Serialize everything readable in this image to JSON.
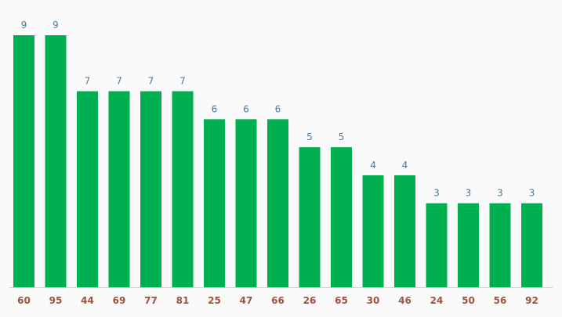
{
  "chart_data": {
    "type": "bar",
    "categories": [
      "60",
      "95",
      "44",
      "69",
      "77",
      "81",
      "25",
      "47",
      "66",
      "26",
      "65",
      "30",
      "46",
      "24",
      "50",
      "56",
      "92"
    ],
    "values": [
      9,
      9,
      7,
      7,
      7,
      7,
      6,
      6,
      6,
      5,
      5,
      4,
      4,
      3,
      3,
      3,
      3
    ],
    "title": "",
    "xlabel": "",
    "ylabel": "",
    "ylim": [
      0,
      9
    ],
    "grid": false,
    "legend": "none",
    "colors": {
      "bar": "#00b050",
      "value_label": "#4a7a9b",
      "category_label": "#a0523c",
      "background": "#fafafa",
      "baseline": "#cfcfcf"
    }
  }
}
